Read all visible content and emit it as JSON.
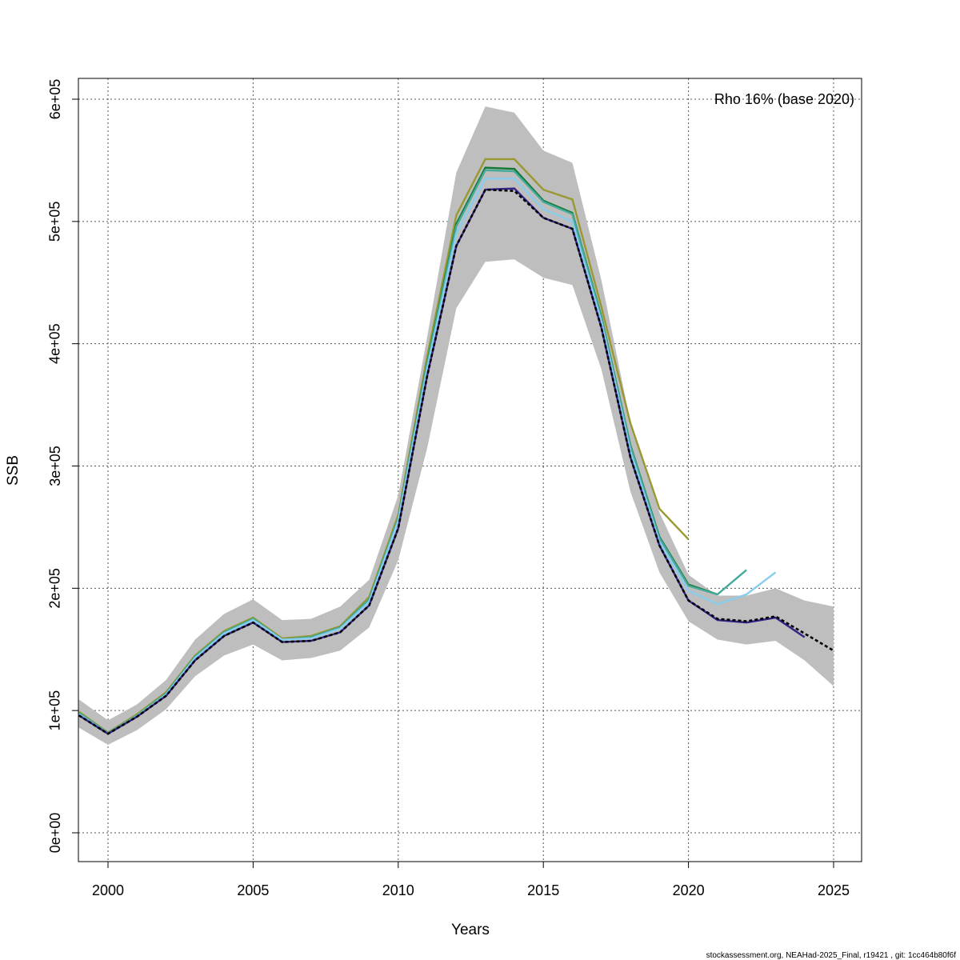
{
  "chart_data": {
    "type": "line",
    "title": "",
    "xlabel": "Years",
    "ylabel": "SSB",
    "xlim": [
      1999,
      2026
    ],
    "ylim": [
      -23000,
      617000
    ],
    "xticks": [
      2000,
      2005,
      2010,
      2015,
      2020,
      2025
    ],
    "xtick_labels": [
      "2000",
      "2005",
      "2010",
      "2015",
      "2020",
      "2025"
    ],
    "yticks": [
      0,
      100000,
      200000,
      300000,
      400000,
      500000,
      600000
    ],
    "ytick_labels": [
      "0e+00",
      "1e+05",
      "2e+05",
      "3e+05",
      "4e+05",
      "5e+05",
      "6e+05"
    ],
    "grid": true,
    "annotation": "Rho 16% (base 2020)",
    "band": {
      "color": "#bebebe",
      "x": [
        1999,
        2000,
        2001,
        2002,
        2003,
        2004,
        2005,
        2006,
        2007,
        2008,
        2009,
        2010,
        2011,
        2012,
        2013,
        2014,
        2015,
        2016,
        2017,
        2018,
        2019,
        2020,
        2021,
        2022,
        2023,
        2024,
        2025
      ],
      "upper": [
        109000,
        92000,
        105000,
        125000,
        158000,
        179000,
        191000,
        174000,
        175000,
        185000,
        207000,
        276000,
        406000,
        540000,
        594000,
        589000,
        558000,
        548000,
        452000,
        336000,
        262000,
        211000,
        194000,
        194000,
        200000,
        190000,
        185000
      ],
      "lower": [
        86000,
        72000,
        84000,
        101000,
        128000,
        145000,
        154000,
        141000,
        143000,
        149000,
        168000,
        223000,
        315000,
        429000,
        467000,
        469000,
        454000,
        448000,
        379000,
        279000,
        213000,
        173000,
        158000,
        154000,
        157000,
        141000,
        120000
      ]
    },
    "series": [
      {
        "color": "#999933",
        "dashed": false,
        "x": [
          1999,
          2000,
          2001,
          2002,
          2003,
          2004,
          2005,
          2006,
          2007,
          2008,
          2009,
          2010,
          2011,
          2012,
          2013,
          2014,
          2015,
          2016,
          2017,
          2018,
          2019,
          2020
        ],
        "values": [
          99000,
          82000,
          97000,
          115000,
          145000,
          165000,
          176000,
          159000,
          161000,
          169000,
          193000,
          260000,
          390000,
          505000,
          551000,
          551000,
          526000,
          518000,
          430000,
          335000,
          265000,
          240000
        ]
      },
      {
        "color": "#117733",
        "dashed": false,
        "x": [
          1999,
          2000,
          2001,
          2002,
          2003,
          2004,
          2005,
          2006,
          2007,
          2008,
          2009,
          2010,
          2011,
          2012,
          2013,
          2014,
          2015,
          2016,
          2017,
          2018,
          2019,
          2020,
          2021
        ],
        "values": [
          98000,
          81500,
          96000,
          114000,
          144000,
          164000,
          175000,
          158000,
          160000,
          168000,
          191000,
          257000,
          385000,
          498000,
          544000,
          543000,
          517000,
          507000,
          422000,
          317000,
          242000,
          203000,
          195000
        ]
      },
      {
        "color": "#44AA99",
        "dashed": false,
        "x": [
          1999,
          2000,
          2001,
          2002,
          2003,
          2004,
          2005,
          2006,
          2007,
          2008,
          2009,
          2010,
          2011,
          2012,
          2013,
          2014,
          2015,
          2016,
          2017,
          2018,
          2019,
          2020,
          2021,
          2022
        ],
        "values": [
          98000,
          81500,
          96000,
          114000,
          144000,
          164000,
          175000,
          158000,
          160000,
          168000,
          191000,
          257000,
          384000,
          496000,
          542000,
          541000,
          516000,
          506000,
          421000,
          316000,
          241000,
          202000,
          195000,
          215000
        ]
      },
      {
        "color": "#88CCEE",
        "dashed": false,
        "x": [
          1999,
          2000,
          2001,
          2002,
          2003,
          2004,
          2005,
          2006,
          2007,
          2008,
          2009,
          2010,
          2011,
          2012,
          2013,
          2014,
          2015,
          2016,
          2017,
          2018,
          2019,
          2020,
          2021,
          2022,
          2023
        ],
        "values": [
          97000,
          81000,
          95500,
          113000,
          143000,
          163000,
          174000,
          158000,
          159000,
          167000,
          189000,
          255000,
          380000,
          490000,
          535000,
          535000,
          510000,
          500000,
          418000,
          312000,
          238000,
          198000,
          187000,
          195000,
          213000
        ]
      },
      {
        "color": "#332288",
        "dashed": false,
        "x": [
          1999,
          2000,
          2001,
          2002,
          2003,
          2004,
          2005,
          2006,
          2007,
          2008,
          2009,
          2010,
          2011,
          2012,
          2013,
          2014,
          2015,
          2016,
          2017,
          2018,
          2019,
          2020,
          2021,
          2022,
          2023,
          2024
        ],
        "values": [
          96000,
          81000,
          95000,
          112000,
          141000,
          161000,
          172000,
          156000,
          157000,
          164000,
          186000,
          249000,
          374000,
          480000,
          526000,
          527000,
          503000,
          494000,
          413000,
          307000,
          235000,
          190000,
          174000,
          172000,
          176000,
          160000
        ]
      },
      {
        "color": "#000000",
        "dashed": true,
        "x": [
          1999,
          2000,
          2001,
          2002,
          2003,
          2004,
          2005,
          2006,
          2007,
          2008,
          2009,
          2010,
          2011,
          2012,
          2013,
          2014,
          2015,
          2016,
          2017,
          2018,
          2019,
          2020,
          2021,
          2022,
          2023,
          2024,
          2025
        ],
        "values": [
          96000,
          81000,
          95000,
          112000,
          141000,
          161000,
          172000,
          156000,
          157000,
          164000,
          186000,
          249000,
          374000,
          480000,
          526000,
          525000,
          503000,
          494000,
          413000,
          307000,
          235000,
          190000,
          175000,
          173000,
          177000,
          163000,
          149000
        ]
      }
    ]
  },
  "footer": "stockassessment.org, NEAHad-2025_Final, r19421 , git: 1cc464b80f6f"
}
